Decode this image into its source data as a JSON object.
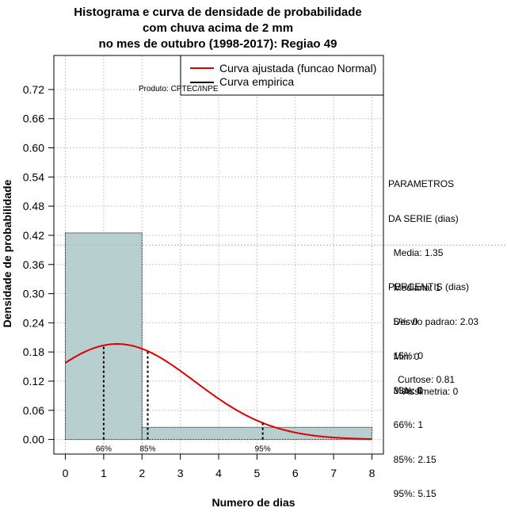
{
  "chart_data": {
    "type": "histogram",
    "title_lines": [
      "Histograma e curva de densidade de probabilidade",
      "com chuva acima de 2 mm",
      "no mes de outubro (1998-2017): Regiao 49"
    ],
    "xlabel": "Numero de dias",
    "ylabel": "Densidade de probabilidade",
    "xlim": [
      -0.3,
      8.3
    ],
    "ylim": [
      -0.03,
      0.79
    ],
    "xticks": [
      0,
      1,
      2,
      3,
      4,
      5,
      6,
      7,
      8
    ],
    "yticks": [
      0.0,
      0.06,
      0.12,
      0.18,
      0.24,
      0.3,
      0.36,
      0.42,
      0.48,
      0.54,
      0.6,
      0.66,
      0.72
    ],
    "ytick_labels": [
      "0.00",
      "0.06",
      "0.12",
      "0.18",
      "0.24",
      "0.30",
      "0.36",
      "0.42",
      "0.48",
      "0.54",
      "0.60",
      "0.66",
      "0.72"
    ],
    "bars": [
      {
        "x0": 0,
        "x1": 2,
        "density": 0.425
      },
      {
        "x0": 2,
        "x1": 8,
        "density": 0.025
      }
    ],
    "bar_color": "#b8cfcf",
    "normal_fit": {
      "mean": 1.35,
      "sd": 2.03,
      "color": "#e00000"
    },
    "reference_line_y": 0.4,
    "percentile_markers": [
      {
        "label": "66%",
        "x": 1.0
      },
      {
        "label": "85%",
        "x": 2.15
      },
      {
        "label": "95%",
        "x": 5.15
      }
    ],
    "legend": {
      "position": "top-right",
      "entries": [
        {
          "label": "Curva ajustada (funcao Normal)",
          "color": "#e00000"
        },
        {
          "label": "Curva empirica",
          "color": "#000000"
        }
      ]
    },
    "annotation": "Produto: CPTEC/INPE",
    "grid": true
  },
  "params": {
    "heading1": "PARAMETROS",
    "heading2": "DA SERIE (dias)",
    "lines": [
      "  Media: 1.35",
      "  Mediana: 1",
      "  Desvio padrao: 2.03",
      "  Min: 0",
      "  Max: 8"
    ]
  },
  "percentis": {
    "heading": "PERCENTIS (dias)",
    "lines": [
      "  5%: 0",
      "  15%: 0",
      "  33%: 0",
      "  66%: 1",
      "  85%: 2.15",
      "  95%: 5.15"
    ]
  },
  "shape": {
    "curtose": "Curtose: 0.81",
    "assimetria": "Assimetria: 0"
  }
}
